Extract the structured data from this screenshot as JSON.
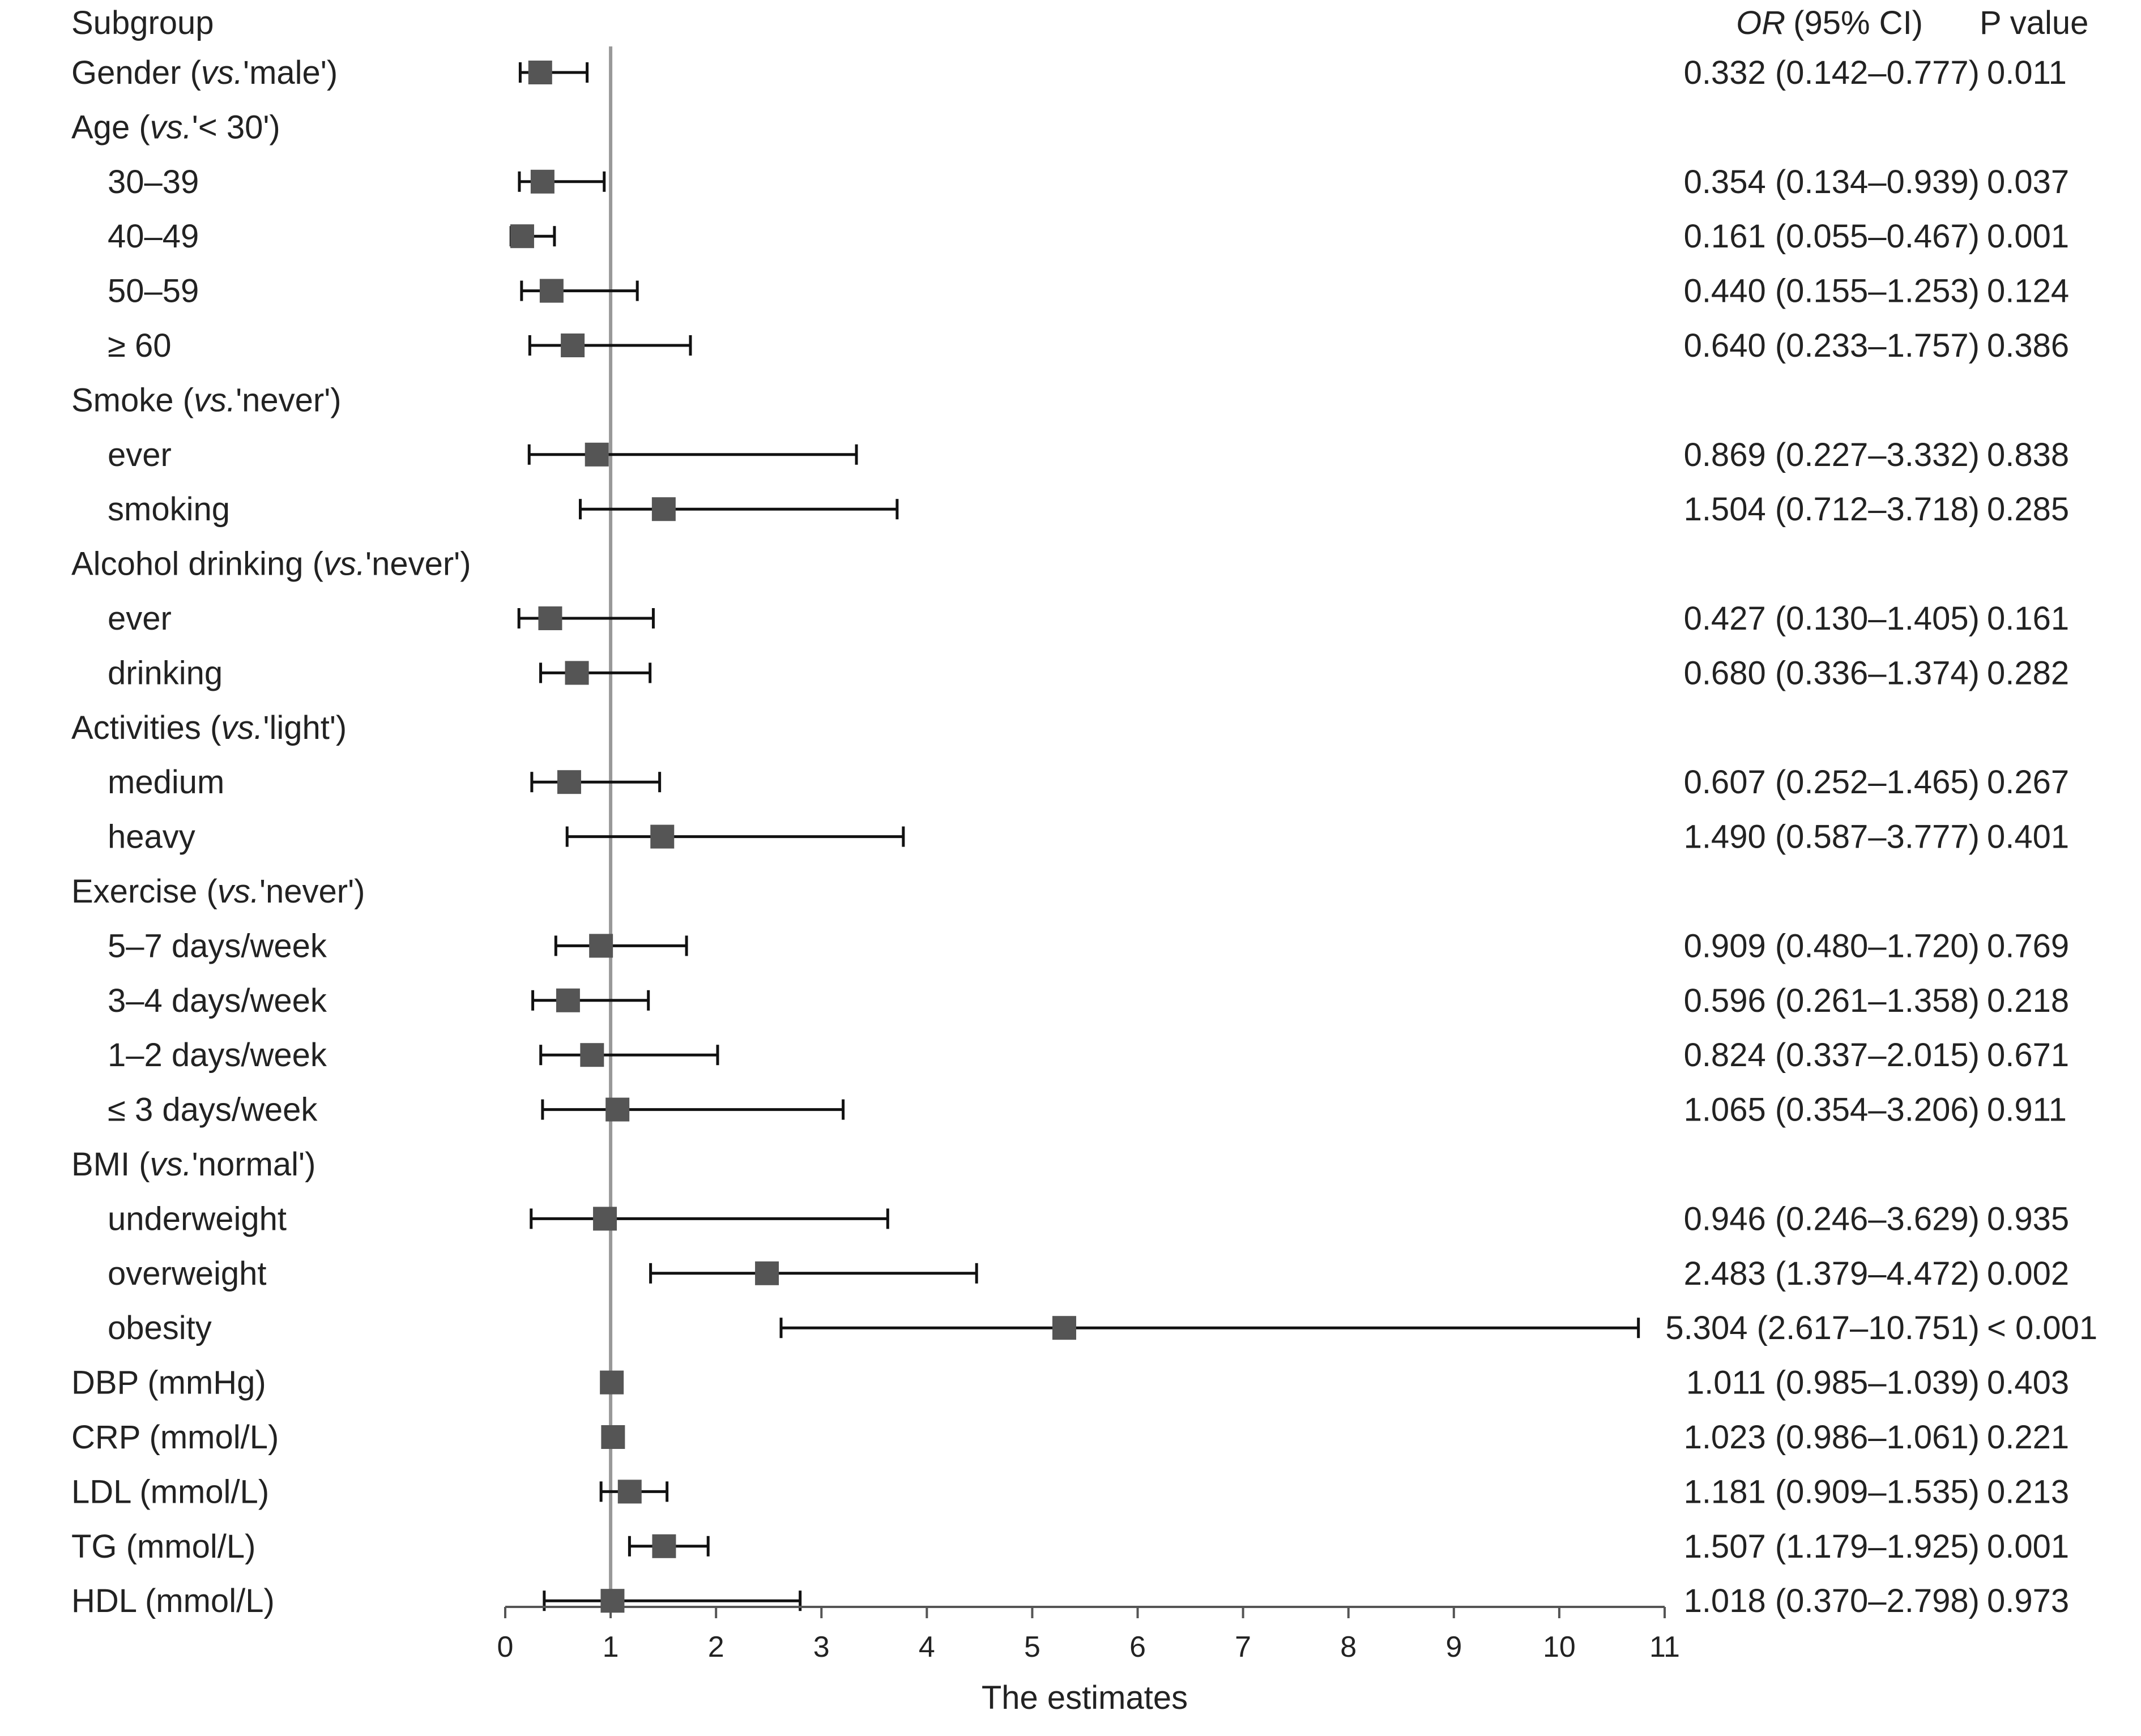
{
  "chart_data": {
    "type": "forest",
    "headers": {
      "subgroup": "Subgroup",
      "or_label": "OR",
      "ci_label": "(95% CI)",
      "p_label": "P value"
    },
    "xlabel": "The estimates",
    "xlim": [
      0,
      11
    ],
    "xticks": [
      0,
      1,
      2,
      3,
      4,
      5,
      6,
      7,
      8,
      9,
      10,
      11
    ],
    "reference_line": 1,
    "colors": {
      "marker": "#555555",
      "ci_line": "#111111",
      "reference": "#999999",
      "axis": "#555555"
    },
    "rows": [
      {
        "label": "Gender (vs.'male')",
        "label_pre": "Gender (",
        "label_it": "vs.",
        "label_post": "'male')",
        "header": false,
        "or": 0.332,
        "lo": 0.142,
        "hi": 0.777,
        "ci_text": "0.332 (0.142–0.777)",
        "p": "0.011"
      },
      {
        "label": "Age (vs.'< 30')",
        "label_pre": "Age (",
        "label_it": "vs.",
        "label_post": "'< 30')",
        "header": true
      },
      {
        "label": "30–39",
        "indent": true,
        "or": 0.354,
        "lo": 0.134,
        "hi": 0.939,
        "ci_text": "0.354 (0.134–0.939)",
        "p": "0.037"
      },
      {
        "label": "40–49",
        "indent": true,
        "or": 0.161,
        "lo": 0.055,
        "hi": 0.467,
        "ci_text": "0.161 (0.055–0.467)",
        "p": "0.001"
      },
      {
        "label": "50–59",
        "indent": true,
        "or": 0.44,
        "lo": 0.155,
        "hi": 1.253,
        "ci_text": "0.440 (0.155–1.253)",
        "p": "0.124"
      },
      {
        "label": "≥ 60",
        "indent": true,
        "or": 0.64,
        "lo": 0.233,
        "hi": 1.757,
        "ci_text": "0.640 (0.233–1.757)",
        "p": "0.386"
      },
      {
        "label": "Smoke (vs.'never')",
        "label_pre": "Smoke (",
        "label_it": "vs.",
        "label_post": "'never')",
        "header": true
      },
      {
        "label": "ever",
        "indent": true,
        "or": 0.869,
        "lo": 0.227,
        "hi": 3.332,
        "ci_text": "0.869 (0.227–3.332)",
        "p": "0.838"
      },
      {
        "label": "smoking",
        "indent": true,
        "or": 1.504,
        "lo": 0.712,
        "hi": 3.718,
        "ci_text": "1.504 (0.712–3.718)",
        "p": "0.285"
      },
      {
        "label": "Alcohol drinking (vs.'never')",
        "label_pre": "Alcohol drinking (",
        "label_it": "vs.",
        "label_post": "'never')",
        "header": true
      },
      {
        "label": "ever",
        "indent": true,
        "or": 0.427,
        "lo": 0.13,
        "hi": 1.405,
        "ci_text": "0.427 (0.130–1.405)",
        "p": "0.161"
      },
      {
        "label": "drinking",
        "indent": true,
        "or": 0.68,
        "lo": 0.336,
        "hi": 1.374,
        "ci_text": "0.680 (0.336–1.374)",
        "p": "0.282"
      },
      {
        "label": "Activities (vs.'light')",
        "label_pre": "Activities (",
        "label_it": "vs.",
        "label_post": "'light')",
        "header": true
      },
      {
        "label": "medium",
        "indent": true,
        "or": 0.607,
        "lo": 0.252,
        "hi": 1.465,
        "ci_text": "0.607 (0.252–1.465)",
        "p": "0.267"
      },
      {
        "label": "heavy",
        "indent": true,
        "or": 1.49,
        "lo": 0.587,
        "hi": 3.777,
        "ci_text": "1.490 (0.587–3.777)",
        "p": "0.401"
      },
      {
        "label": "Exercise (vs.'never')",
        "label_pre": "Exercise (",
        "label_it": "vs.",
        "label_post": "'never')",
        "header": true
      },
      {
        "label": "5–7 days/week",
        "indent": true,
        "or": 0.909,
        "lo": 0.48,
        "hi": 1.72,
        "ci_text": "0.909 (0.480–1.720)",
        "p": "0.769"
      },
      {
        "label": "3–4 days/week",
        "indent": true,
        "or": 0.596,
        "lo": 0.261,
        "hi": 1.358,
        "ci_text": "0.596 (0.261–1.358)",
        "p": "0.218"
      },
      {
        "label": "1–2 days/week",
        "indent": true,
        "or": 0.824,
        "lo": 0.337,
        "hi": 2.015,
        "ci_text": "0.824 (0.337–2.015)",
        "p": "0.671"
      },
      {
        "label": "≤ 3 days/week",
        "indent": true,
        "or": 1.065,
        "lo": 0.354,
        "hi": 3.206,
        "ci_text": "1.065 (0.354–3.206)",
        "p": "0.911"
      },
      {
        "label": "BMI (vs.'normal')",
        "label_pre": "BMI (",
        "label_it": "vs.",
        "label_post": "'normal')",
        "header": true
      },
      {
        "label": "underweight",
        "indent": true,
        "or": 0.946,
        "lo": 0.246,
        "hi": 3.629,
        "ci_text": "0.946 (0.246–3.629)",
        "p": "0.935"
      },
      {
        "label": "overweight",
        "indent": true,
        "or": 2.483,
        "lo": 1.379,
        "hi": 4.472,
        "ci_text": "2.483 (1.379–4.472)",
        "p": "0.002"
      },
      {
        "label": "obesity",
        "indent": true,
        "or": 5.304,
        "lo": 2.617,
        "hi": 10.751,
        "ci_text": "5.304 (2.617–10.751)",
        "p": "< 0.001"
      },
      {
        "label": "DBP (mmHg)",
        "or": 1.011,
        "lo": 0.985,
        "hi": 1.039,
        "ci_text": "1.011 (0.985–1.039)",
        "p": "0.403"
      },
      {
        "label": "CRP (mmol/L)",
        "or": 1.023,
        "lo": 0.986,
        "hi": 1.061,
        "ci_text": "1.023 (0.986–1.061)",
        "p": "0.221"
      },
      {
        "label": "LDL (mmol/L)",
        "or": 1.181,
        "lo": 0.909,
        "hi": 1.535,
        "ci_text": "1.181 (0.909–1.535)",
        "p": "0.213"
      },
      {
        "label": "TG (mmol/L)",
        "or": 1.507,
        "lo": 1.179,
        "hi": 1.925,
        "ci_text": "1.507 (1.179–1.925)",
        "p": "0.001"
      },
      {
        "label": "HDL (mmol/L)",
        "or": 1.018,
        "lo": 0.37,
        "hi": 2.798,
        "ci_text": "1.018 (0.370–2.798)",
        "p": "0.973"
      }
    ]
  }
}
